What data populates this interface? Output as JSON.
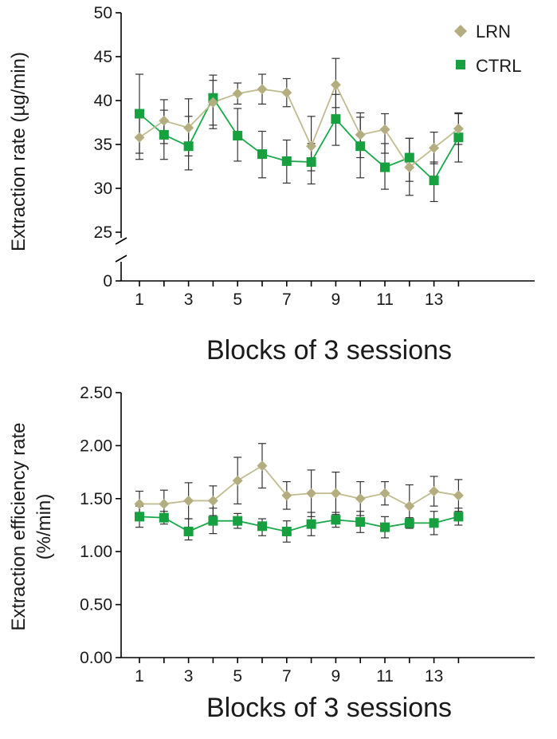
{
  "colors": {
    "lrn": "#c0bb90",
    "ctrl": "#19a94a",
    "lrn_marker": "#b3ad80",
    "ctrl_marker": "#17a040",
    "axis": "#000000",
    "error_bar": "#333333"
  },
  "legend": {
    "placement": "top-right",
    "items": [
      {
        "label": "LRN",
        "marker": "diamond",
        "color": "#b3ad80"
      },
      {
        "label": "CTRL",
        "marker": "square",
        "color": "#17a040"
      }
    ]
  },
  "chart_data": [
    {
      "type": "line",
      "ylabel": "Extraction rate (µg/min)",
      "xlabel": "Blocks of 3 sessions",
      "x": [
        1,
        2,
        3,
        4,
        5,
        6,
        7,
        8,
        9,
        10,
        11,
        12,
        13,
        14
      ],
      "x_tick_labels": [
        "1",
        "3",
        "5",
        "7",
        "9",
        "11",
        "13"
      ],
      "y_tick_labels": [
        "0",
        "25",
        "30",
        "35",
        "40",
        "45",
        "50"
      ],
      "ylim": [
        22,
        50
      ],
      "axis_break": true,
      "grid": false,
      "series": [
        {
          "name": "LRN",
          "marker": "diamond",
          "values": [
            35.8,
            37.7,
            36.9,
            39.8,
            40.8,
            41.3,
            40.9,
            34.8,
            41.8,
            36.1,
            36.7,
            32.4,
            34.6,
            36.8
          ],
          "err_upper": [
            2.6,
            2.4,
            3.3,
            2.5,
            1.2,
            1.7,
            1.6,
            3.4,
            3.0,
            2.5,
            1.8,
            3.3,
            1.8,
            1.8
          ],
          "err_lower": [
            2.5,
            2.6,
            3.2,
            2.6,
            1.2,
            1.7,
            1.6,
            2.8,
            2.6,
            2.6,
            2.7,
            3.2,
            1.8,
            1.8
          ]
        },
        {
          "name": "CTRL",
          "marker": "square",
          "values": [
            38.5,
            36.1,
            34.8,
            40.3,
            36.0,
            33.9,
            33.1,
            33.0,
            37.9,
            34.8,
            32.4,
            33.5,
            30.9,
            35.8
          ],
          "err_upper": [
            4.5,
            2.8,
            3.4,
            2.6,
            3.1,
            2.6,
            2.4,
            2.1,
            2.8,
            3.3,
            2.7,
            2.2,
            2.1,
            2.7
          ],
          "err_lower": [
            4.5,
            2.8,
            2.7,
            3.5,
            2.9,
            2.7,
            2.5,
            2.5,
            3.0,
            3.6,
            2.5,
            2.7,
            2.4,
            2.8
          ]
        }
      ]
    },
    {
      "type": "line",
      "ylabel": "Extraction efficiency rate (%/min)",
      "xlabel": "Blocks of 3 sessions",
      "x": [
        1,
        2,
        3,
        4,
        5,
        6,
        7,
        8,
        9,
        10,
        11,
        12,
        13,
        14
      ],
      "x_tick_labels": [
        "1",
        "3",
        "5",
        "7",
        "9",
        "11",
        "13"
      ],
      "y_tick_labels": [
        "0.00",
        "0.50",
        "1.00",
        "1.50",
        "2.00",
        "2.50"
      ],
      "ylim": [
        0,
        2.5
      ],
      "grid": false,
      "series": [
        {
          "name": "LRN",
          "marker": "diamond",
          "values": [
            1.45,
            1.45,
            1.48,
            1.48,
            1.67,
            1.81,
            1.53,
            1.55,
            1.55,
            1.5,
            1.55,
            1.43,
            1.57,
            1.53
          ],
          "err_upper": [
            0.12,
            0.13,
            0.17,
            0.14,
            0.22,
            0.21,
            0.13,
            0.22,
            0.2,
            0.16,
            0.11,
            0.2,
            0.14,
            0.15
          ],
          "err_lower": [
            0.12,
            0.13,
            0.17,
            0.14,
            0.22,
            0.21,
            0.13,
            0.22,
            0.2,
            0.16,
            0.11,
            0.2,
            0.14,
            0.15
          ]
        },
        {
          "name": "CTRL",
          "marker": "square",
          "values": [
            1.33,
            1.32,
            1.19,
            1.29,
            1.29,
            1.24,
            1.19,
            1.26,
            1.3,
            1.28,
            1.23,
            1.27,
            1.27,
            1.33
          ],
          "err_upper": [
            0.1,
            0.06,
            0.12,
            0.12,
            0.07,
            0.07,
            0.1,
            0.11,
            0.07,
            0.1,
            0.1,
            0.05,
            0.11,
            0.08
          ],
          "err_lower": [
            0.1,
            0.06,
            0.08,
            0.12,
            0.07,
            0.09,
            0.1,
            0.11,
            0.07,
            0.1,
            0.1,
            0.05,
            0.11,
            0.08
          ]
        }
      ]
    }
  ]
}
